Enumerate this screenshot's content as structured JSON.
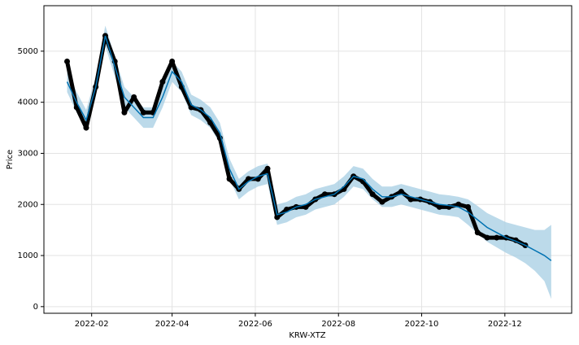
{
  "chart_data": {
    "type": "forecast",
    "xlabel": "KRW-XTZ",
    "ylabel": "Price",
    "x": [
      "2022-01-14",
      "2022-01-21",
      "2022-01-28",
      "2022-02-04",
      "2022-02-11",
      "2022-02-18",
      "2022-02-25",
      "2022-03-04",
      "2022-03-11",
      "2022-03-18",
      "2022-03-25",
      "2022-04-01",
      "2022-04-08",
      "2022-04-15",
      "2022-04-22",
      "2022-04-29",
      "2022-05-06",
      "2022-05-13",
      "2022-05-20",
      "2022-05-27",
      "2022-06-03",
      "2022-06-10",
      "2022-06-17",
      "2022-06-24",
      "2022-07-01",
      "2022-07-08",
      "2022-07-15",
      "2022-07-22",
      "2022-07-29",
      "2022-08-05",
      "2022-08-12",
      "2022-08-19",
      "2022-08-26",
      "2022-09-02",
      "2022-09-09",
      "2022-09-16",
      "2022-09-23",
      "2022-09-30",
      "2022-10-07",
      "2022-10-14",
      "2022-10-21",
      "2022-10-28",
      "2022-11-04",
      "2022-11-11",
      "2022-11-18",
      "2022-11-25",
      "2022-12-02",
      "2022-12-09",
      "2022-12-16",
      "2022-12-23",
      "2022-12-30",
      "2023-01-04"
    ],
    "series": [
      {
        "color": "#000000",
        "marker": "point",
        "values": [
          4800,
          3900,
          3500,
          4300,
          5300,
          4800,
          3800,
          4100,
          3800,
          3800,
          4400,
          4800,
          4300,
          3900,
          3850,
          3600,
          3300,
          2500,
          2300,
          2500,
          2500,
          2700,
          1750,
          1900,
          1950,
          1950,
          2100,
          2200,
          2200,
          2300,
          2550,
          2450,
          2200,
          2050,
          2150,
          2250,
          2100,
          2100,
          2050,
          1950,
          1950,
          2000,
          1950,
          1450,
          1350,
          1350,
          1350,
          1300,
          1200,
          null,
          null,
          null
        ]
      },
      {
        "color": "#0072b2",
        "band_color": "#a6cee3",
        "values": [
          4400,
          4000,
          3650,
          4300,
          5300,
          4700,
          4100,
          3900,
          3700,
          3700,
          4100,
          4600,
          4400,
          3950,
          3850,
          3700,
          3400,
          2700,
          2300,
          2450,
          2550,
          2600,
          1800,
          1850,
          1950,
          2000,
          2100,
          2150,
          2200,
          2350,
          2550,
          2500,
          2300,
          2150,
          2150,
          2200,
          2150,
          2100,
          2050,
          2000,
          1980,
          1950,
          1850,
          1700,
          1550,
          1450,
          1350,
          1280,
          1200,
          1100,
          1000,
          900
        ],
        "lower": [
          4200,
          3800,
          3450,
          4100,
          5100,
          4500,
          3900,
          3700,
          3500,
          3500,
          3900,
          4400,
          4200,
          3750,
          3650,
          3500,
          3200,
          2500,
          2100,
          2250,
          2350,
          2400,
          1600,
          1650,
          1750,
          1800,
          1900,
          1950,
          2000,
          2150,
          2350,
          2300,
          2100,
          1950,
          1950,
          2000,
          1950,
          1900,
          1850,
          1800,
          1780,
          1750,
          1600,
          1430,
          1270,
          1160,
          1050,
          960,
          850,
          700,
          500,
          150
        ],
        "upper": [
          4600,
          4200,
          3850,
          4500,
          5500,
          4900,
          4300,
          4100,
          3900,
          3900,
          4300,
          4800,
          4600,
          4150,
          4050,
          3900,
          3600,
          2900,
          2500,
          2650,
          2750,
          2800,
          2000,
          2050,
          2150,
          2200,
          2300,
          2350,
          2400,
          2550,
          2750,
          2700,
          2500,
          2350,
          2350,
          2400,
          2350,
          2300,
          2250,
          2200,
          2180,
          2150,
          2100,
          1970,
          1830,
          1740,
          1650,
          1600,
          1550,
          1500,
          1500,
          1600
        ]
      }
    ],
    "xlim": [
      "2021-12-28",
      "2023-01-19"
    ],
    "xticks": [
      {
        "value": "2022-02-01",
        "label": "2022-02"
      },
      {
        "value": "2022-04-01",
        "label": "2022-04"
      },
      {
        "value": "2022-06-01",
        "label": "2022-06"
      },
      {
        "value": "2022-08-01",
        "label": "2022-08"
      },
      {
        "value": "2022-10-01",
        "label": "2022-10"
      },
      {
        "value": "2022-12-01",
        "label": "2022-12"
      }
    ],
    "ylim": [
      -130,
      5890
    ],
    "yticks": [
      0,
      1000,
      2000,
      3000,
      4000,
      5000
    ],
    "grid": true
  }
}
